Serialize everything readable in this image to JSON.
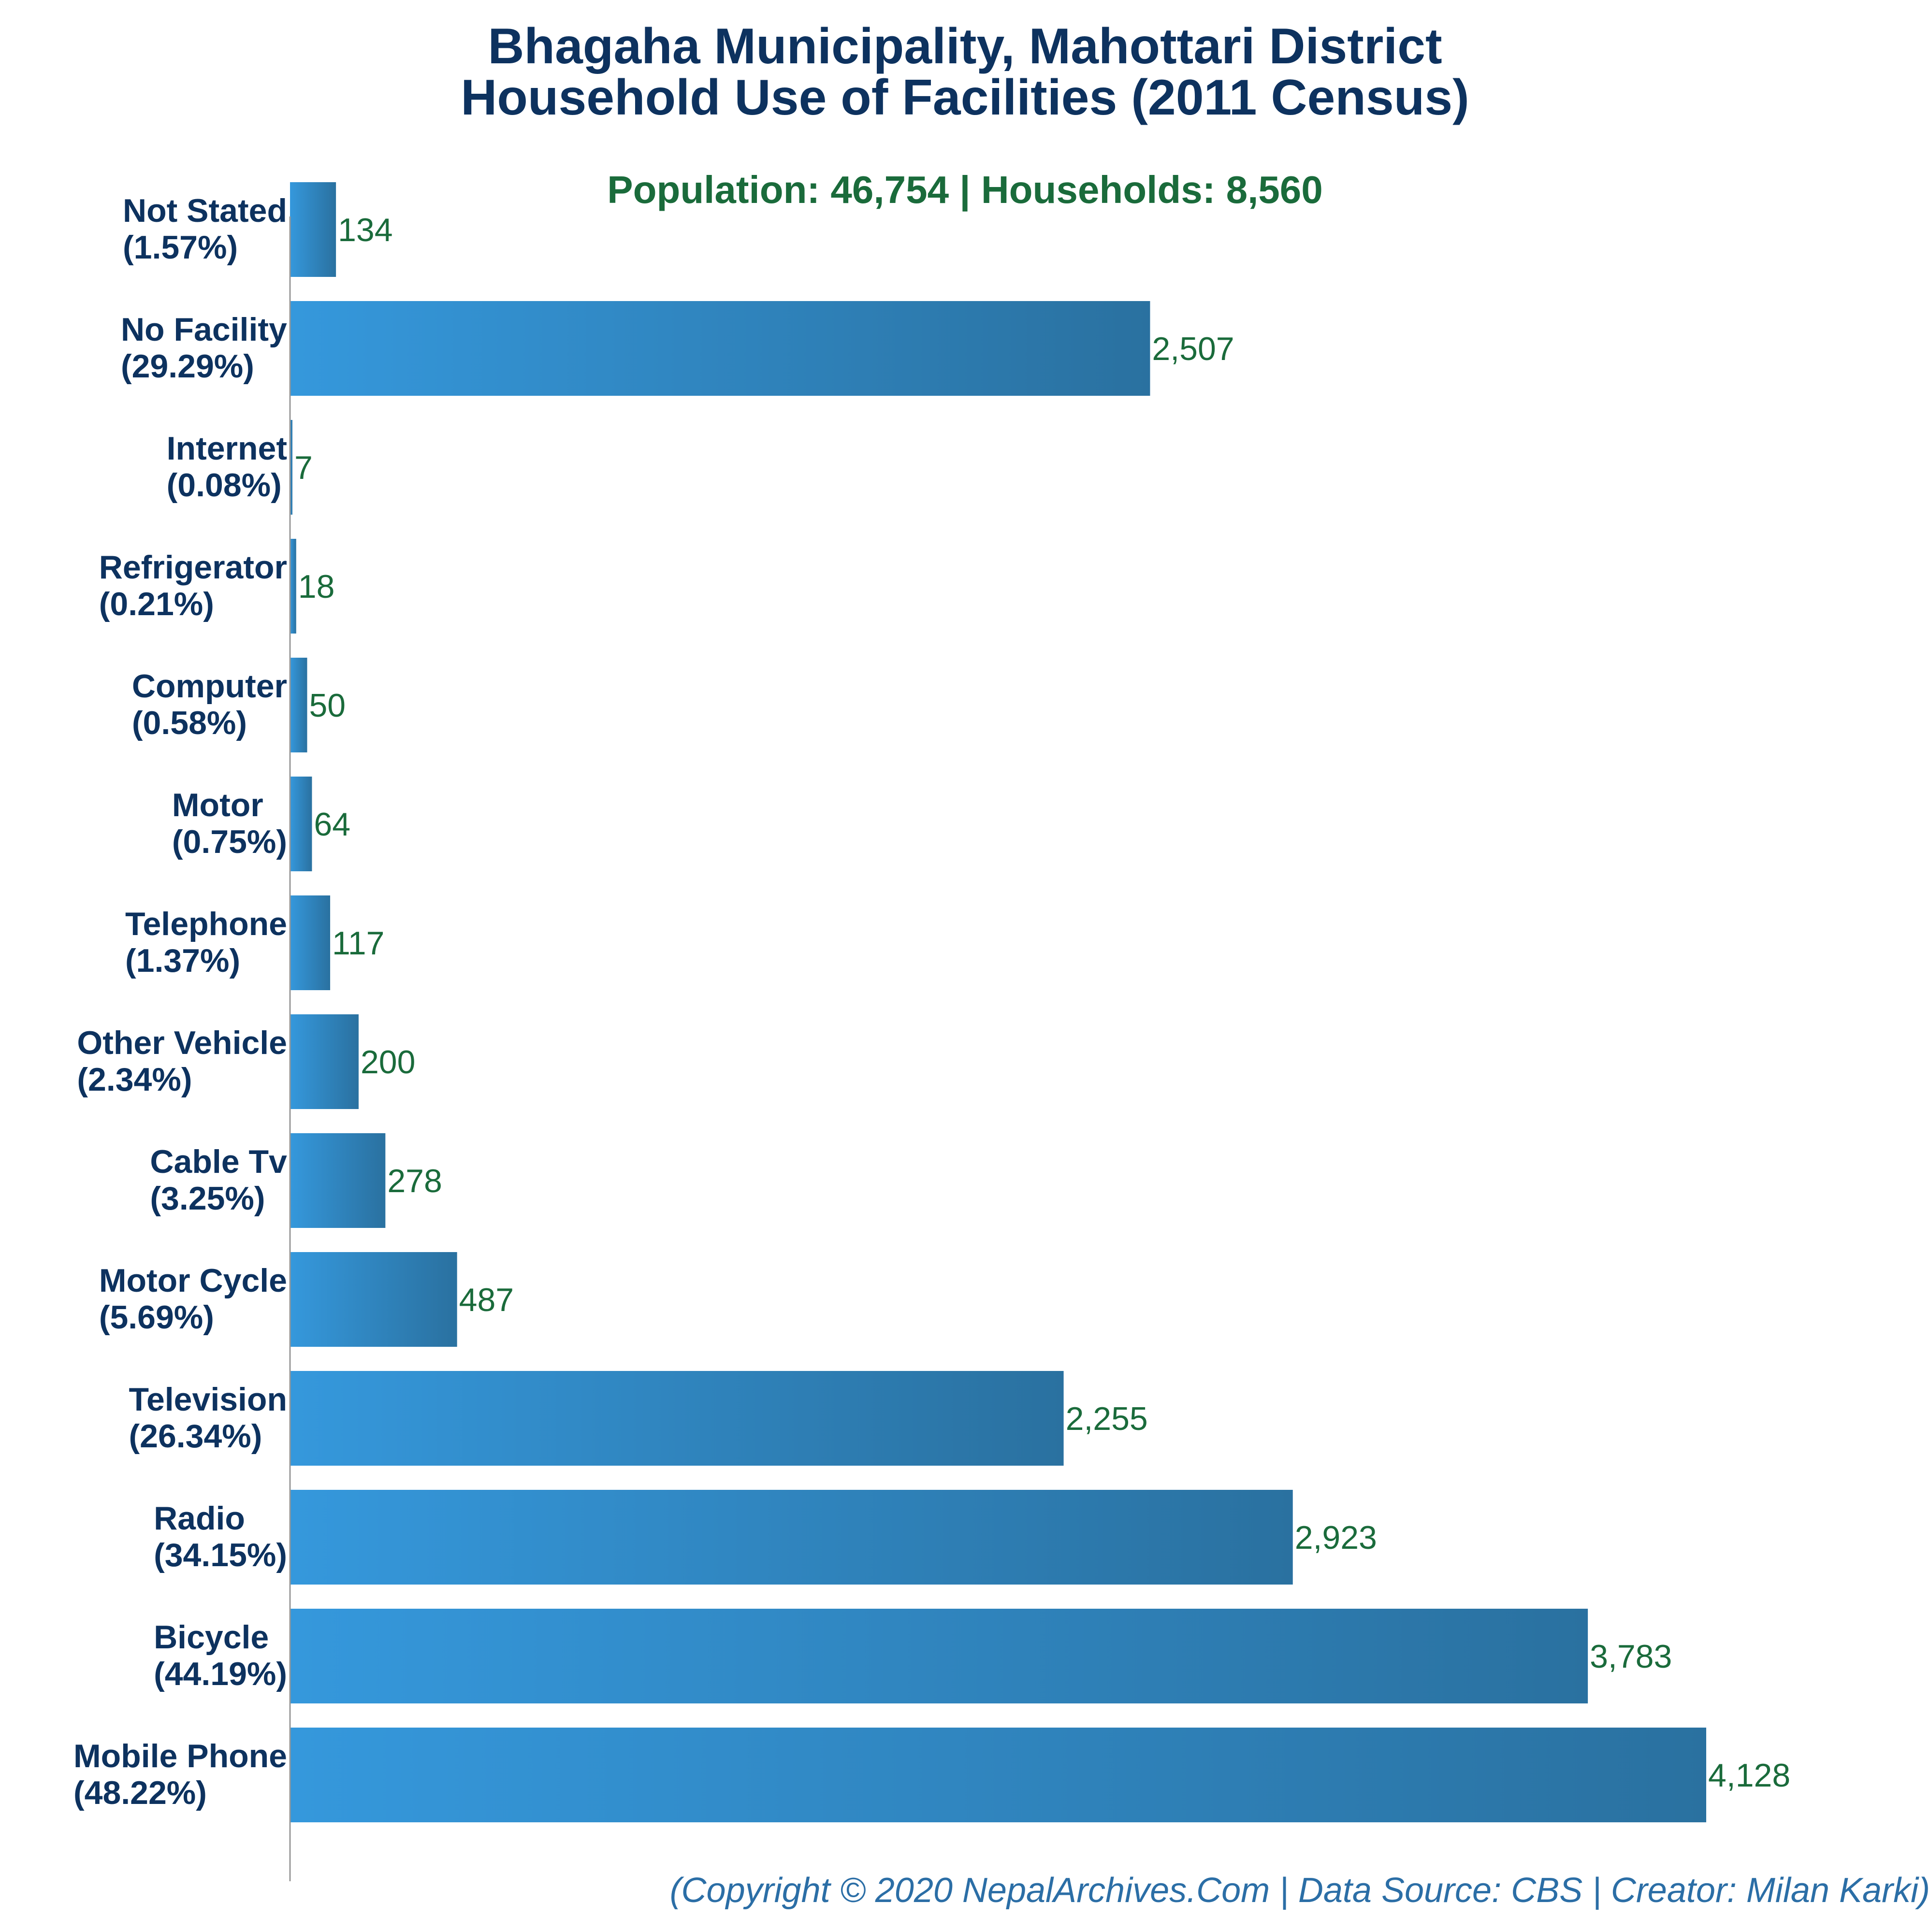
{
  "title_line1": "Bhagaha Municipality, Mahottari District",
  "title_line2": "Household Use of Facilities (2011 Census)",
  "subtitle": "Population: 46,754 | Households: 8,560",
  "footer": "(Copyright © 2020 NepalArchives.Com | Data Source: CBS | Creator: Milan Karki)",
  "colors": {
    "bar_light": "#3598dc",
    "bar_dark": "#2a71a0",
    "title": "#0d325f",
    "value_label": "#1a6b3b",
    "category_label": "#0d325f",
    "axis": "#999999"
  },
  "chart_data": {
    "type": "bar",
    "orientation": "horizontal",
    "categories": [
      "Not Stated",
      "No Facility",
      "Internet",
      "Refrigerator",
      "Computer",
      "Motor",
      "Telephone",
      "Other Vehicle",
      "Cable Tv",
      "Motor Cycle",
      "Television",
      "Radio",
      "Bicycle",
      "Mobile Phone"
    ],
    "percent_labels": [
      "(1.57%)",
      "(29.29%)",
      "(0.08%)",
      "(0.21%)",
      "(0.58%)",
      "(0.75%)",
      "(1.37%)",
      "(2.34%)",
      "(3.25%)",
      "(5.69%)",
      "(26.34%)",
      "(34.15%)",
      "(44.19%)",
      "(48.22%)"
    ],
    "values": [
      134,
      2507,
      7,
      18,
      50,
      64,
      117,
      200,
      278,
      487,
      2255,
      2923,
      3783,
      4128
    ],
    "value_labels": [
      "134",
      "2,507",
      "7",
      "18",
      "50",
      "64",
      "117",
      "200",
      "278",
      "487",
      "2,255",
      "2,923",
      "3,783",
      "4,128"
    ],
    "xlim": [
      0,
      4128
    ],
    "grid": false,
    "legend": "none"
  }
}
